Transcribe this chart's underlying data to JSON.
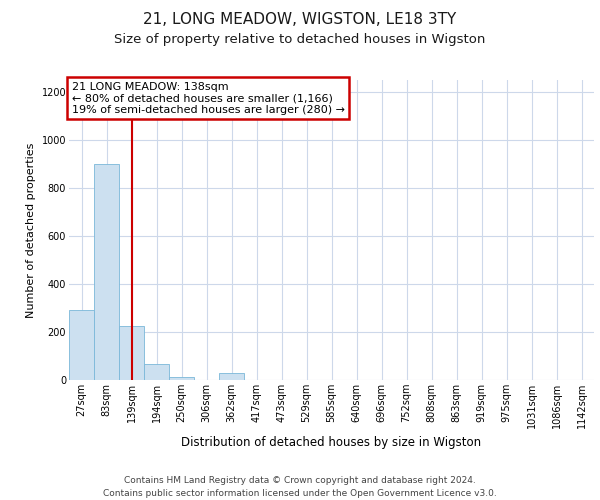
{
  "title": "21, LONG MEADOW, WIGSTON, LE18 3TY",
  "subtitle": "Size of property relative to detached houses in Wigston",
  "xlabel": "Distribution of detached houses by size in Wigston",
  "ylabel": "Number of detached properties",
  "bin_labels": [
    "27sqm",
    "83sqm",
    "139sqm",
    "194sqm",
    "250sqm",
    "306sqm",
    "362sqm",
    "417sqm",
    "473sqm",
    "529sqm",
    "585sqm",
    "640sqm",
    "696sqm",
    "752sqm",
    "808sqm",
    "863sqm",
    "919sqm",
    "975sqm",
    "1031sqm",
    "1086sqm",
    "1142sqm"
  ],
  "bar_values": [
    290,
    900,
    225,
    65,
    12,
    0,
    28,
    0,
    0,
    0,
    0,
    0,
    0,
    0,
    0,
    0,
    0,
    0,
    0,
    0,
    0
  ],
  "bar_color": "#cce0f0",
  "bar_edge_color": "#7ab8d9",
  "vline_x_index": 2,
  "vline_color": "#cc0000",
  "annotation_line1": "21 LONG MEADOW: 138sqm",
  "annotation_line2": "← 80% of detached houses are smaller (1,166)",
  "annotation_line3": "19% of semi-detached houses are larger (280) →",
  "annotation_box_edgecolor": "#cc0000",
  "ylim": [
    0,
    1250
  ],
  "yticks": [
    0,
    200,
    400,
    600,
    800,
    1000,
    1200
  ],
  "footer_line1": "Contains HM Land Registry data © Crown copyright and database right 2024.",
  "footer_line2": "Contains public sector information licensed under the Open Government Licence v3.0.",
  "bg_color": "#ffffff",
  "grid_color": "#cdd8ea",
  "title_fontsize": 11,
  "subtitle_fontsize": 9.5,
  "ylabel_fontsize": 8,
  "xlabel_fontsize": 8.5,
  "tick_fontsize": 7,
  "annotation_fontsize": 8,
  "footer_fontsize": 6.5
}
